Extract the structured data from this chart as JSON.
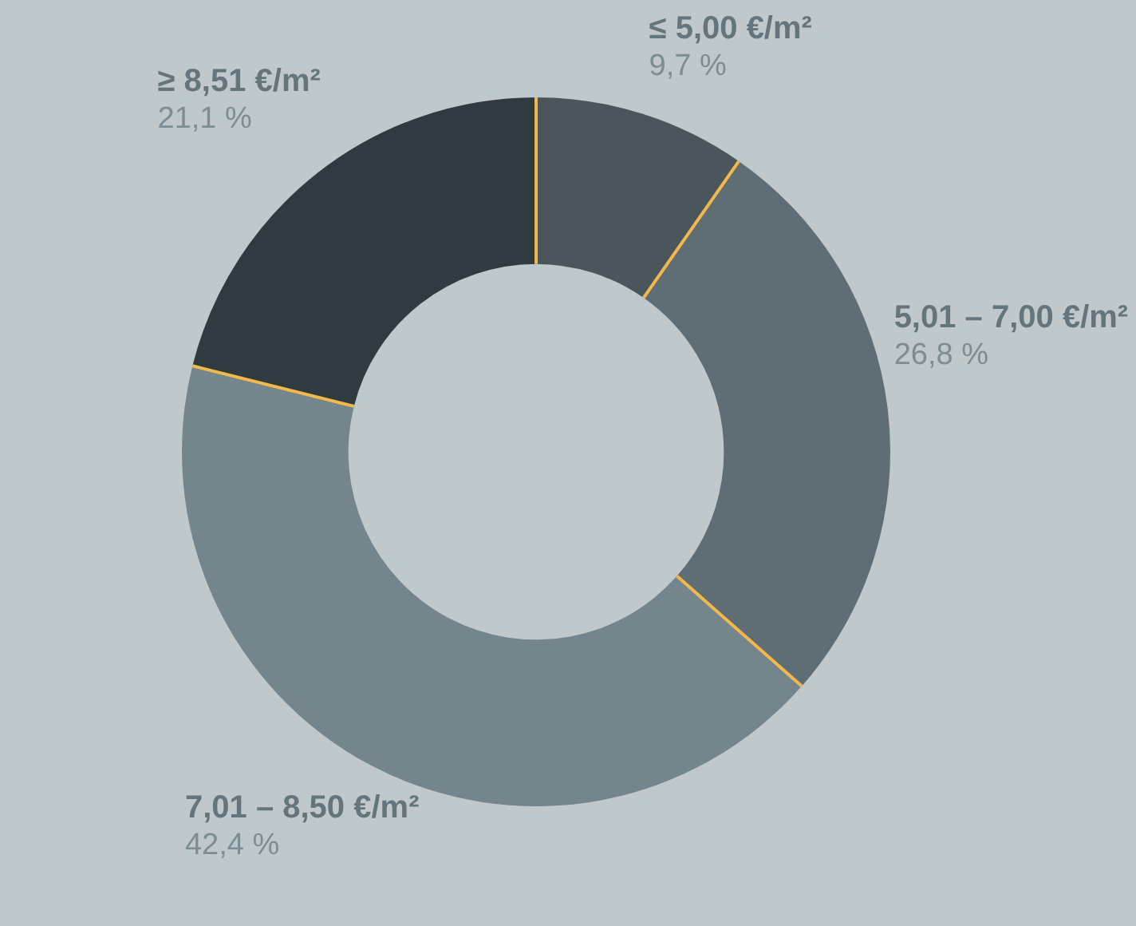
{
  "chart_data": {
    "type": "donut",
    "categories": [
      "≤ 5,00 €/m²",
      "5,01 – 7,00 €/m²",
      "7,01 – 8,50 €/m²",
      "≥ 8,51 €/m²"
    ],
    "values": [
      9.7,
      26.8,
      42.4,
      21.1
    ],
    "value_labels": [
      "9,7 %",
      "26,8 %",
      "42,4 %",
      "21,1 %"
    ],
    "colors": [
      "#4a555c",
      "#5f6d74",
      "#74858c",
      "#2f3a41"
    ],
    "legend": false
  }
}
